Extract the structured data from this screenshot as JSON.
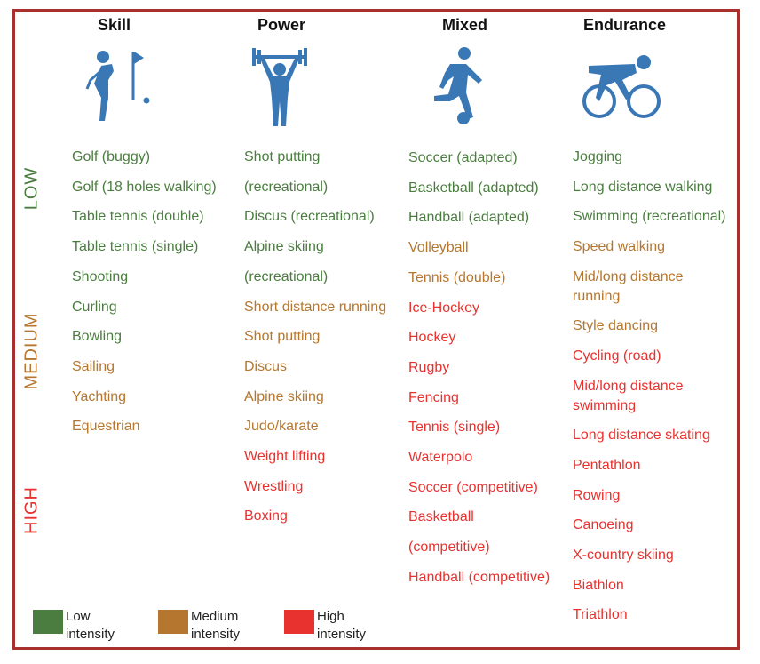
{
  "colors": {
    "low": "#4a7d3f",
    "medium": "#b5772f",
    "high": "#e8322f",
    "border": "#a8302f",
    "icon": "#3a78b5"
  },
  "levels": {
    "low": "LOW",
    "medium": "MEDIUM",
    "high": "HIGH"
  },
  "columns": [
    {
      "title": "Skill",
      "icon": "golf-icon",
      "items": [
        {
          "text": "Golf (buggy)",
          "level": "low"
        },
        {
          "text": "Golf (18 holes walking)",
          "level": "low"
        },
        {
          "text": "Table tennis (double)",
          "level": "low"
        },
        {
          "text": "Table tennis (single)",
          "level": "low"
        },
        {
          "text": "Shooting",
          "level": "low"
        },
        {
          "text": "Curling",
          "level": "low"
        },
        {
          "text": "Bowling",
          "level": "low"
        },
        {
          "text": "Sailing",
          "level": "medium"
        },
        {
          "text": "Yachting",
          "level": "medium"
        },
        {
          "text": "Equestrian",
          "level": "medium"
        }
      ]
    },
    {
      "title": "Power",
      "icon": "weightlifting-icon",
      "items": [
        {
          "text": "Shot putting\n(recreational)",
          "level": "low"
        },
        {
          "text": "Discus (recreational)",
          "level": "low"
        },
        {
          "text": "Alpine skiing\n(recreational)",
          "level": "low"
        },
        {
          "text": "Short distance running",
          "level": "medium"
        },
        {
          "text": "Shot putting",
          "level": "medium"
        },
        {
          "text": "Discus",
          "level": "medium"
        },
        {
          "text": "Alpine skiing",
          "level": "medium"
        },
        {
          "text": "Judo/karate",
          "level": "medium"
        },
        {
          "text": "Weight lifting",
          "level": "high"
        },
        {
          "text": "Wrestling",
          "level": "high"
        },
        {
          "text": "Boxing",
          "level": "high"
        }
      ]
    },
    {
      "title": "Mixed",
      "icon": "soccer-player-icon",
      "items": [
        {
          "text": "Soccer (adapted)",
          "level": "low"
        },
        {
          "text": "Basketball (adapted)",
          "level": "low"
        },
        {
          "text": "Handball (adapted)",
          "level": "low"
        },
        {
          "text": "Volleyball",
          "level": "medium"
        },
        {
          "text": "Tennis (double)",
          "level": "medium"
        },
        {
          "text": "Ice-Hockey",
          "level": "high"
        },
        {
          "text": "Hockey",
          "level": "high"
        },
        {
          "text": "Rugby",
          "level": "high"
        },
        {
          "text": "Fencing",
          "level": "high"
        },
        {
          "text": "Tennis (single)",
          "level": "high"
        },
        {
          "text": "Waterpolo",
          "level": "high"
        },
        {
          "text": "Soccer (competitive)",
          "level": "high"
        },
        {
          "text": "Basketball\n(competitive)",
          "level": "high"
        },
        {
          "text": "Handball (competitive)",
          "level": "high"
        }
      ]
    },
    {
      "title": "Endurance",
      "icon": "cyclist-icon",
      "items": [
        {
          "text": "Jogging",
          "level": "low"
        },
        {
          "text": "Long distance walking",
          "level": "low"
        },
        {
          "text": "Swimming (recreational)",
          "level": "low"
        },
        {
          "text": "Speed walking",
          "level": "medium"
        },
        {
          "text": "Mid/long distance\nrunning",
          "level": "medium"
        },
        {
          "text": "Style dancing",
          "level": "medium"
        },
        {
          "text": "Cycling (road)",
          "level": "high"
        },
        {
          "text": "Mid/long distance\nswimming",
          "level": "high"
        },
        {
          "text": "Long distance skating",
          "level": "high"
        },
        {
          "text": "Pentathlon",
          "level": "high"
        },
        {
          "text": "Rowing",
          "level": "high"
        },
        {
          "text": "Canoeing",
          "level": "high"
        },
        {
          "text": "X-country skiing",
          "level": "high"
        },
        {
          "text": "Biathlon",
          "level": "high"
        },
        {
          "text": "Triathlon",
          "level": "high"
        }
      ]
    }
  ],
  "legend": [
    {
      "level": "low",
      "label": "Low\nintensity"
    },
    {
      "level": "medium",
      "label": "Medium\nintensity"
    },
    {
      "level": "high",
      "label": "High\nintensity"
    }
  ]
}
